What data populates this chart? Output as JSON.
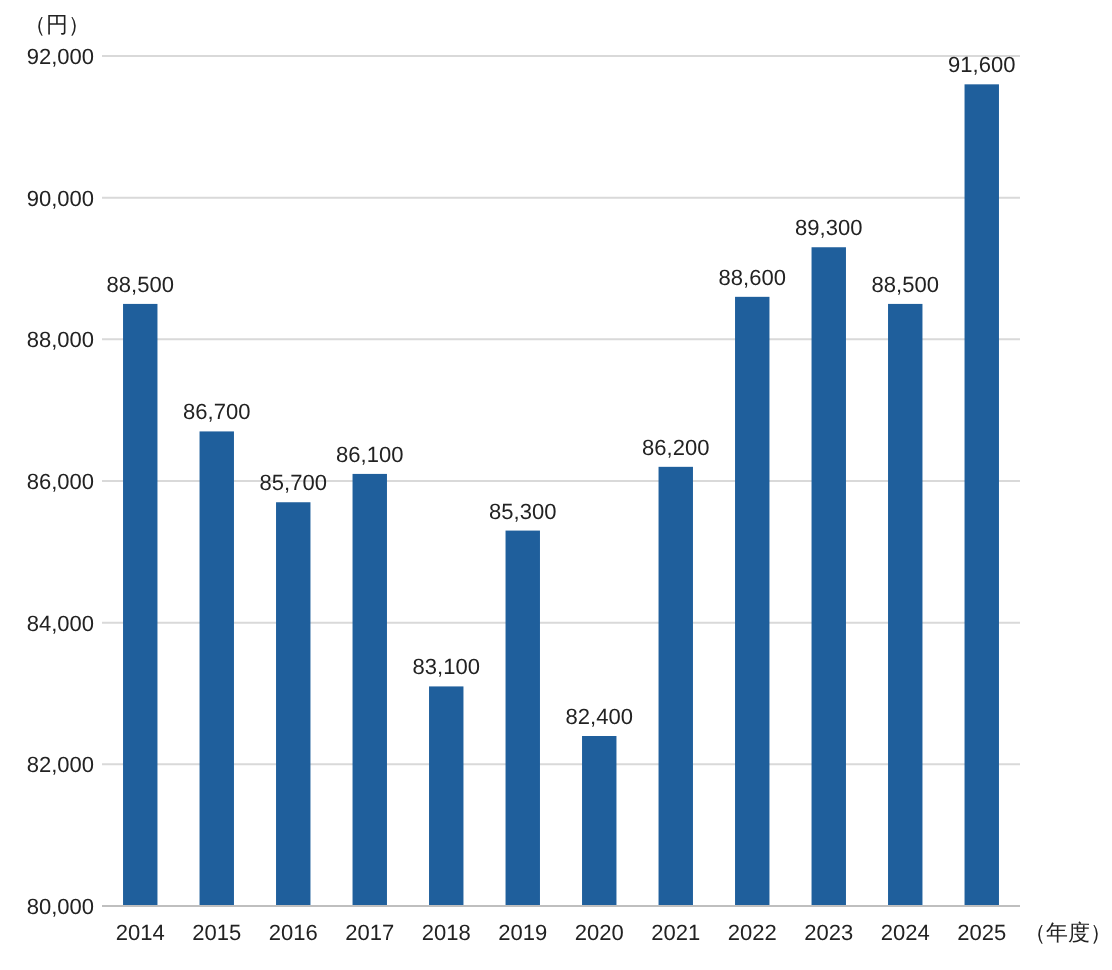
{
  "chart_data": {
    "type": "bar",
    "ylabel": "（円）",
    "xlabel": "（年度）",
    "categories": [
      "2014",
      "2015",
      "2016",
      "2017",
      "2018",
      "2019",
      "2020",
      "2021",
      "2022",
      "2023",
      "2024",
      "2025"
    ],
    "values": [
      88500,
      86700,
      85700,
      86100,
      83100,
      85300,
      82400,
      86200,
      88600,
      89300,
      88500,
      91600
    ],
    "value_labels": [
      "88,500",
      "86,700",
      "85,700",
      "86,100",
      "83,100",
      "85,300",
      "82,400",
      "86,200",
      "88,600",
      "89,300",
      "88,500",
      "91,600"
    ],
    "color": "#1f5f9c",
    "ylim": [
      80000,
      92000
    ],
    "yticks": [
      {
        "value": 80000,
        "label": "80,000"
      },
      {
        "value": 82000,
        "label": "82,000"
      },
      {
        "value": 84000,
        "label": "84,000"
      },
      {
        "value": 86000,
        "label": "86,000"
      },
      {
        "value": 88000,
        "label": "88,000"
      },
      {
        "value": 90000,
        "label": "90,000"
      },
      {
        "value": 92000,
        "label": "92,000"
      }
    ],
    "grid": "y"
  }
}
